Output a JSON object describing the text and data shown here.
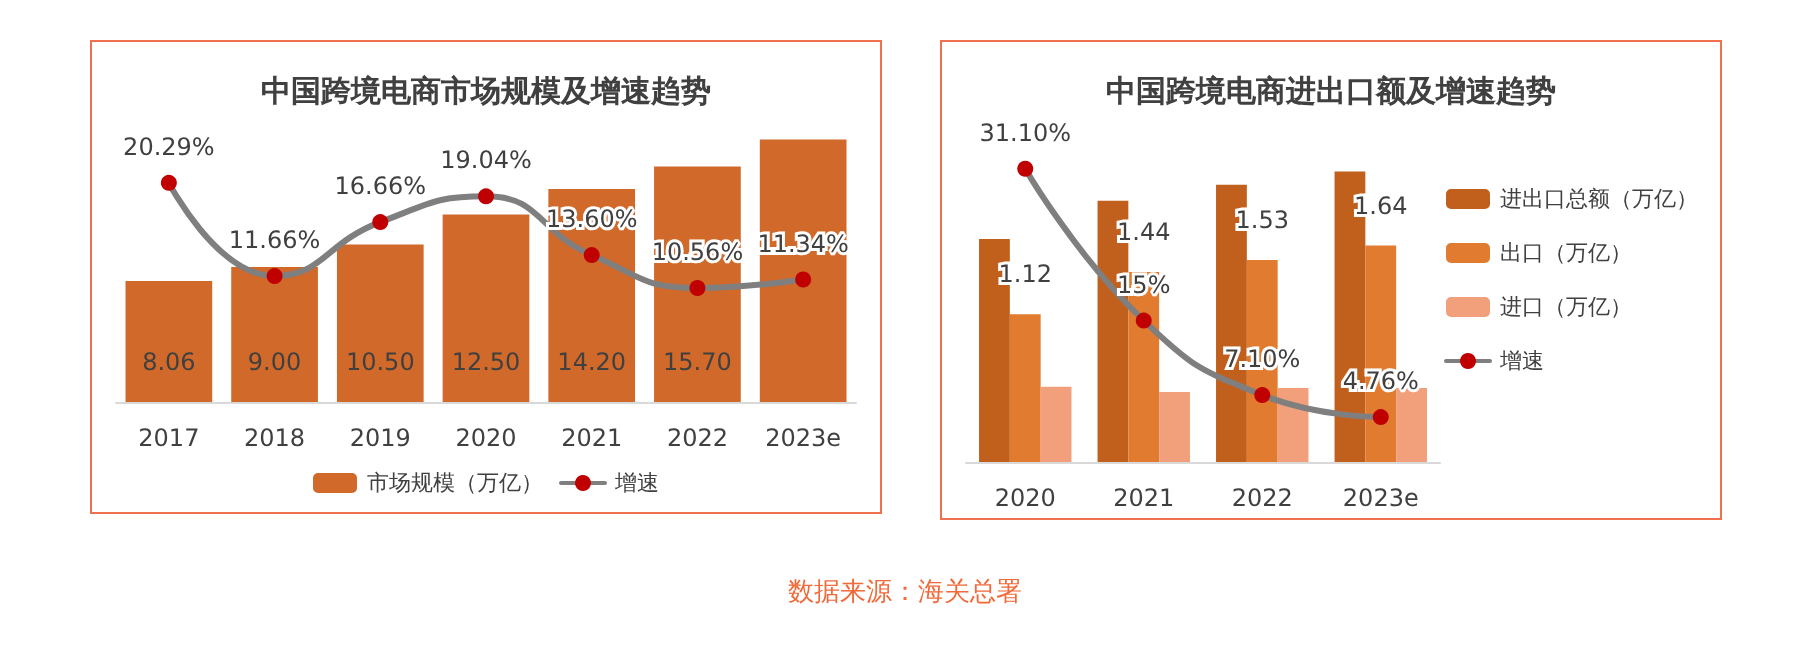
{
  "chart_data": [
    {
      "type": "bar",
      "title": "中国跨境电商市场规模及增速趋势",
      "categories": [
        "2017",
        "2018",
        "2019",
        "2020",
        "2021",
        "2022",
        "2023e"
      ],
      "series": [
        {
          "name": "市场规模（万亿）",
          "color": "#d0692a",
          "values": [
            8.06,
            9.0,
            10.5,
            12.5,
            14.2,
            15.7,
            17.5
          ],
          "value_labels": [
            "8.06",
            "9.00",
            "10.50",
            "12.50",
            "14.20",
            "15.70",
            null
          ]
        },
        {
          "name": "增速",
          "type": "line",
          "axis": "y2",
          "color": "#7f7f7f",
          "colors": [
            "#c00000",
            "#c00000",
            "#c00000",
            "#c00000",
            "#c00000",
            "#c00000",
            "#c00000"
          ],
          "values": [
            20.29,
            11.66,
            16.66,
            19.04,
            13.6,
            10.56,
            11.34
          ],
          "value_labels": [
            "20.29%",
            "11.66%",
            "16.66%",
            "19.04%",
            "13.60%",
            "10.56%",
            "11.34%"
          ]
        }
      ],
      "tick_labels": "x",
      "grid": false,
      "legend": "bottom",
      "marker": "circle",
      "line_style": "solid"
    },
    {
      "type": "bar",
      "title": "中国跨境电商进出口额及增速趋势",
      "categories": [
        "2020",
        "2021",
        "2022",
        "2023e"
      ],
      "series": [
        {
          "name": "进出口总额（万亿）",
          "color": "#c0601c",
          "values": [
            1.69,
            1.98,
            2.1,
            2.2
          ]
        },
        {
          "name": "出口（万亿）",
          "color": "#e07b30",
          "values": [
            1.12,
            1.44,
            1.53,
            1.64
          ],
          "value_labels": [
            "1.12",
            "1.44",
            "1.53",
            "1.64"
          ]
        },
        {
          "name": "进口（万亿）",
          "color": "#f2a07c",
          "values": [
            0.57,
            0.53,
            0.56,
            0.56
          ]
        },
        {
          "name": "增速",
          "type": "line",
          "axis": "y2",
          "color": "#7f7f7f",
          "colors": [
            "#c00000",
            "#c00000",
            "#c00000",
            "#c00000"
          ],
          "values": [
            31.1,
            15,
            7.1,
            4.76
          ],
          "value_labels": [
            "31.10%",
            "15%",
            "7.10%",
            "4.76%"
          ]
        }
      ],
      "tick_labels": "x",
      "grid": false,
      "legend": "right",
      "marker": "circle",
      "line_style": "solid",
      "annotations": [
        "数据来源：海关总署"
      ]
    }
  ]
}
